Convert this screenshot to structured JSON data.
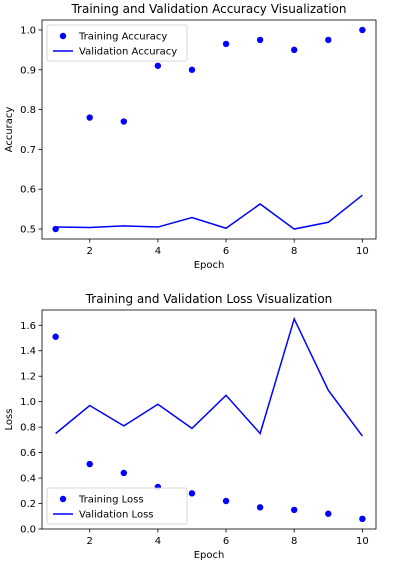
{
  "chart_data": [
    {
      "type": "scatter+line",
      "title": "Training and Validation Accuracy Visualization",
      "xlabel": "Epoch",
      "ylabel": "Accuracy",
      "xlim": [
        0.6,
        10.4
      ],
      "ylim": [
        0.475,
        1.025
      ],
      "xticks": [
        2,
        4,
        6,
        8,
        10
      ],
      "yticks": [
        0.5,
        0.6,
        0.7,
        0.8,
        0.9,
        1.0
      ],
      "ytick_labels": [
        "0.5",
        "0.6",
        "0.7",
        "0.8",
        "0.9",
        "1.0"
      ],
      "legend": "top-left",
      "grid": false,
      "x": [
        1,
        2,
        3,
        4,
        5,
        6,
        7,
        8,
        9,
        10
      ],
      "series": [
        {
          "name": "Training Accuracy",
          "style": "points",
          "color": "#0000ff",
          "values": [
            0.5,
            0.78,
            0.77,
            0.91,
            0.9,
            0.965,
            0.975,
            0.95,
            0.975,
            1.0
          ]
        },
        {
          "name": "Validation Accuracy",
          "style": "line",
          "color": "#0000ff",
          "values": [
            0.505,
            0.504,
            0.508,
            0.505,
            0.529,
            0.502,
            0.563,
            0.5,
            0.517,
            0.585
          ]
        }
      ]
    },
    {
      "type": "scatter+line",
      "title": "Training and Validation Loss Visualization",
      "xlabel": "Epoch",
      "ylabel": "Loss",
      "xlim": [
        0.6,
        10.4
      ],
      "ylim": [
        0,
        1.72
      ],
      "xticks": [
        2,
        4,
        6,
        8,
        10
      ],
      "yticks": [
        0.0,
        0.2,
        0.4,
        0.6,
        0.8,
        1.0,
        1.2,
        1.4,
        1.6
      ],
      "ytick_labels": [
        "0.0",
        "0.2",
        "0.4",
        "0.6",
        "0.8",
        "1.0",
        "1.2",
        "1.4",
        "1.6"
      ],
      "legend": "bottom-left",
      "grid": false,
      "x": [
        1,
        2,
        3,
        4,
        5,
        6,
        7,
        8,
        9,
        10
      ],
      "series": [
        {
          "name": "Training Loss",
          "style": "points",
          "color": "#0000ff",
          "values": [
            1.51,
            0.51,
            0.44,
            0.33,
            0.28,
            0.22,
            0.17,
            0.15,
            0.12,
            0.08
          ]
        },
        {
          "name": "Validation Loss",
          "style": "line",
          "color": "#0000ff",
          "values": [
            0.75,
            0.97,
            0.81,
            0.98,
            0.79,
            1.05,
            0.75,
            1.65,
            1.09,
            0.73
          ]
        }
      ]
    }
  ]
}
